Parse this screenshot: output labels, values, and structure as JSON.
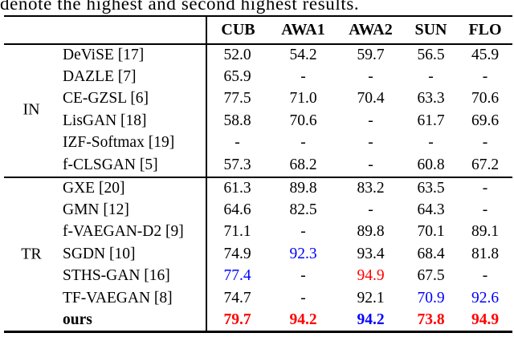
{
  "caption": "denote the highest and second highest results.",
  "colors": {
    "black": "#000000",
    "blue": "#0000ff",
    "red": "#ff0000"
  },
  "table": {
    "columns": [
      "CUB",
      "AWA1",
      "AWA2",
      "SUN",
      "FLO"
    ],
    "groups": [
      {
        "label": "IN",
        "rows": [
          {
            "method": "DeViSE [17]",
            "bold": false,
            "values": [
              "52.0",
              "54.2",
              "59.7",
              "56.5",
              "45.9"
            ],
            "colors": [
              "black",
              "black",
              "black",
              "black",
              "black"
            ]
          },
          {
            "method": "DAZLE [7]",
            "bold": false,
            "values": [
              "65.9",
              "-",
              "-",
              "-",
              "-"
            ],
            "colors": [
              "black",
              "black",
              "black",
              "black",
              "black"
            ]
          },
          {
            "method": "CE-GZSL [6]",
            "bold": false,
            "values": [
              "77.5",
              "71.0",
              "70.4",
              "63.3",
              "70.6"
            ],
            "colors": [
              "black",
              "black",
              "black",
              "black",
              "black"
            ]
          },
          {
            "method": "LisGAN [18]",
            "bold": false,
            "values": [
              "58.8",
              "70.6",
              "-",
              "61.7",
              "69.6"
            ],
            "colors": [
              "black",
              "black",
              "black",
              "black",
              "black"
            ]
          },
          {
            "method": "IZF-Softmax [19]",
            "bold": false,
            "values": [
              "-",
              "-",
              "-",
              "-",
              "-"
            ],
            "colors": [
              "black",
              "black",
              "black",
              "black",
              "black"
            ]
          },
          {
            "method": "f-CLSGAN [5]",
            "bold": false,
            "values": [
              "57.3",
              "68.2",
              "-",
              "60.8",
              "67.2"
            ],
            "colors": [
              "black",
              "black",
              "black",
              "black",
              "black"
            ]
          }
        ]
      },
      {
        "label": "TR",
        "rows": [
          {
            "method": "GXE [20]",
            "bold": false,
            "values": [
              "61.3",
              "89.8",
              "83.2",
              "63.5",
              "-"
            ],
            "colors": [
              "black",
              "black",
              "black",
              "black",
              "black"
            ]
          },
          {
            "method": "GMN [12]",
            "bold": false,
            "values": [
              "64.6",
              "82.5",
              "-",
              "64.3",
              "-"
            ],
            "colors": [
              "black",
              "black",
              "black",
              "black",
              "black"
            ]
          },
          {
            "method": "f-VAEGAN-D2 [9]",
            "bold": false,
            "values": [
              "71.1",
              "-",
              "89.8",
              "70.1",
              "89.1"
            ],
            "colors": [
              "black",
              "black",
              "black",
              "black",
              "black"
            ]
          },
          {
            "method": "SGDN [10]",
            "bold": false,
            "values": [
              "74.9",
              "92.3",
              "93.4",
              "68.4",
              "81.8"
            ],
            "colors": [
              "black",
              "blue",
              "black",
              "black",
              "black"
            ]
          },
          {
            "method": "STHS-GAN [16]",
            "bold": false,
            "values": [
              "77.4",
              "-",
              "94.9",
              "67.5",
              "-"
            ],
            "colors": [
              "blue",
              "black",
              "red",
              "black",
              "black"
            ]
          },
          {
            "method": "TF-VAEGAN [8]",
            "bold": false,
            "values": [
              "74.7",
              "-",
              "92.1",
              "70.9",
              "92.6"
            ],
            "colors": [
              "black",
              "black",
              "black",
              "blue",
              "blue"
            ]
          },
          {
            "method": "ours",
            "bold": true,
            "values": [
              "79.7",
              "94.2",
              "94.2",
              "73.8",
              "94.9"
            ],
            "colors": [
              "red",
              "red",
              "blue",
              "red",
              "red"
            ]
          }
        ]
      }
    ]
  }
}
